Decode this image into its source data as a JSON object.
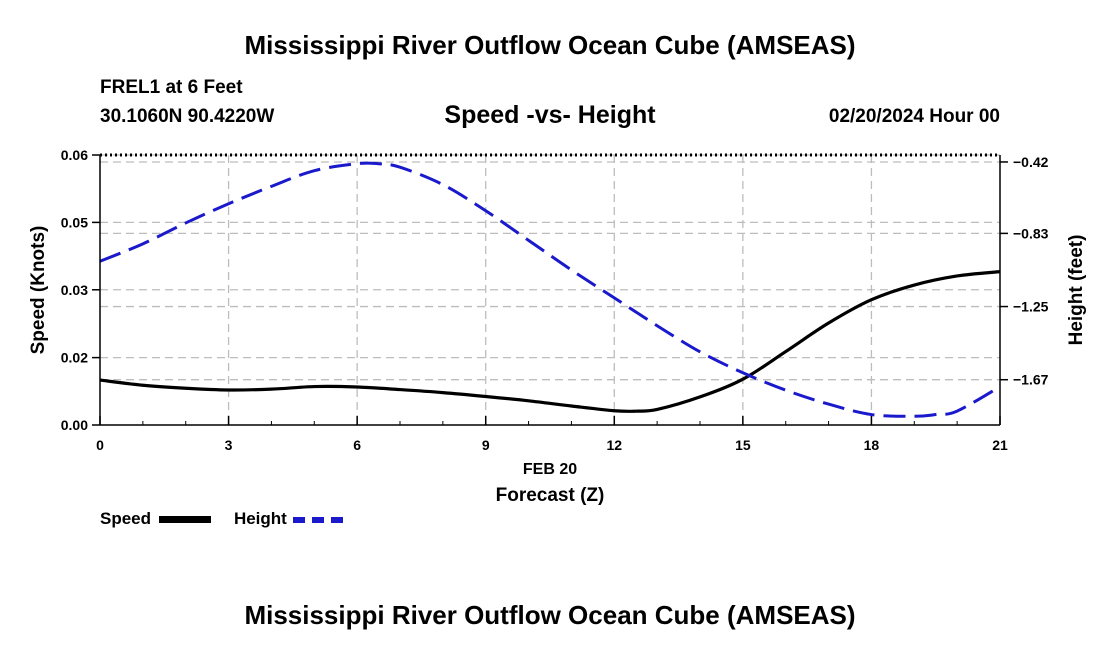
{
  "page": {
    "title": "Mississippi River Outflow Ocean Cube (AMSEAS)",
    "footer_title": "Mississippi River Outflow Ocean Cube (AMSEAS)",
    "station": "FREL1 at 6 Feet",
    "coords": "30.1060N  90.4220W",
    "subtitle": "Speed -vs- Height",
    "datetime": "02/20/2024 Hour 00"
  },
  "chart_data": {
    "type": "line",
    "title": "Speed -vs- Height",
    "xlabel": "Forecast (Z)",
    "xdate_label": "FEB 20",
    "ylabel_left": "Speed (Knots)",
    "ylabel_right": "Height (feet)",
    "xlim": [
      0,
      21
    ],
    "ylim_left": [
      0,
      0.0625
    ],
    "ylim_right": [
      -1.93,
      -0.38
    ],
    "x_ticks": [
      0,
      3,
      6,
      9,
      12,
      15,
      18,
      21
    ],
    "x_tick_labels": [
      "0",
      "3",
      "6",
      "9",
      "12",
      "15",
      "18",
      "21"
    ],
    "y_left_ticks": [
      0,
      0.0156,
      0.0313,
      0.0469,
      0.0625
    ],
    "y_left_tick_labels": [
      "0.00",
      "0.02",
      "0.03",
      "0.05",
      "0.06"
    ],
    "y_right_ticks": [
      -0.42,
      -0.83,
      -1.25,
      -1.67
    ],
    "y_right_tick_labels": [
      "-0.42",
      "-0.83",
      "-1.25",
      "-1.67"
    ],
    "grid": true,
    "series": [
      {
        "name": "Speed",
        "axis": "left",
        "color": "#000000",
        "style": "solid",
        "x": [
          0,
          1,
          2,
          3,
          4,
          5,
          6,
          7,
          8,
          9,
          10,
          11,
          12,
          12.5,
          13,
          14,
          15,
          16,
          17,
          18,
          19,
          20,
          21
        ],
        "values": [
          0.0104,
          0.0092,
          0.0085,
          0.0081,
          0.0083,
          0.0089,
          0.0088,
          0.0082,
          0.0075,
          0.0066,
          0.0056,
          0.0044,
          0.0033,
          0.0032,
          0.0036,
          0.0065,
          0.0106,
          0.017,
          0.0236,
          0.029,
          0.0324,
          0.0345,
          0.0355
        ]
      },
      {
        "name": "Height",
        "axis": "right",
        "color": "#1a1acc",
        "style": "dashed",
        "x": [
          0,
          1,
          2,
          3,
          4,
          5,
          6,
          6.5,
          7,
          8,
          9,
          10,
          11,
          12,
          13,
          14,
          15,
          16,
          17,
          18,
          19,
          19.5,
          20,
          21
        ],
        "values": [
          -0.99,
          -0.89,
          -0.77,
          -0.66,
          -0.56,
          -0.47,
          -0.43,
          -0.43,
          -0.45,
          -0.55,
          -0.7,
          -0.87,
          -1.04,
          -1.2,
          -1.36,
          -1.51,
          -1.63,
          -1.73,
          -1.81,
          -1.87,
          -1.88,
          -1.87,
          -1.85,
          -1.71
        ]
      }
    ],
    "legend": [
      {
        "label": "Speed",
        "color": "#000000",
        "style": "solid"
      },
      {
        "label": "Height",
        "color": "#1a1acc",
        "style": "dashed"
      }
    ],
    "legend_position": "bottom-left"
  }
}
